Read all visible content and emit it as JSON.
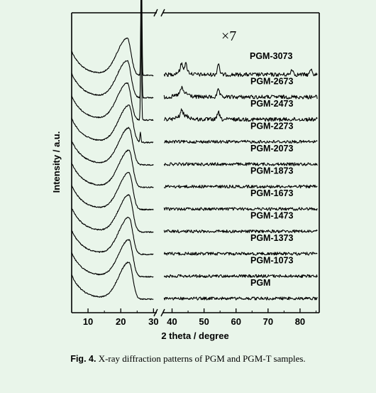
{
  "chart_data": {
    "type": "line",
    "xlabel": "2 theta / degree",
    "ylabel": "Intensity / a.u.",
    "x_ticks_left": [
      10,
      20,
      30
    ],
    "x_ticks_right": [
      40,
      50,
      60,
      70,
      80
    ],
    "xlim_left": [
      5,
      31
    ],
    "xlim_right": [
      37,
      86
    ],
    "axis_break": "between 30 and 37 (top and bottom axes)",
    "magnification_label": "×7",
    "magnification_applies_to": "right segment (2θ > 37)",
    "series": [
      {
        "name": "PGM-3073",
        "broad_peak_2theta": 22,
        "sharp_peaks_2theta": [
          26.3,
          43,
          44.3,
          54.5,
          77.5,
          83.5
        ]
      },
      {
        "name": "PGM-2673",
        "broad_peak_2theta": 22,
        "sharp_peaks_2theta": [
          26.3,
          43,
          54.5
        ]
      },
      {
        "name": "PGM-2473",
        "broad_peak_2theta": 22,
        "sharp_peaks_2theta": [
          26.2,
          43,
          54.5
        ]
      },
      {
        "name": "PGM-2273",
        "broad_peak_2theta": 22.5,
        "sharp_peaks_2theta": [
          26
        ]
      },
      {
        "name": "PGM-2073",
        "broad_peak_2theta": 22.5,
        "sharp_peaks_2theta": []
      },
      {
        "name": "PGM-1873",
        "broad_peak_2theta": 22.5,
        "sharp_peaks_2theta": []
      },
      {
        "name": "PGM-1673",
        "broad_peak_2theta": 22.5,
        "sharp_peaks_2theta": []
      },
      {
        "name": "PGM-1473",
        "broad_peak_2theta": 22.5,
        "sharp_peaks_2theta": []
      },
      {
        "name": "PGM-1373",
        "broad_peak_2theta": 22.5,
        "sharp_peaks_2theta": []
      },
      {
        "name": "PGM-1073",
        "broad_peak_2theta": 22.5,
        "sharp_peaks_2theta": []
      },
      {
        "name": "PGM",
        "broad_peak_2theta": 22.5,
        "sharp_peaks_2theta": []
      }
    ]
  },
  "caption": {
    "label": "Fig. 4.",
    "text": "X-ray diffraction patterns of PGM and PGM-T samples."
  }
}
